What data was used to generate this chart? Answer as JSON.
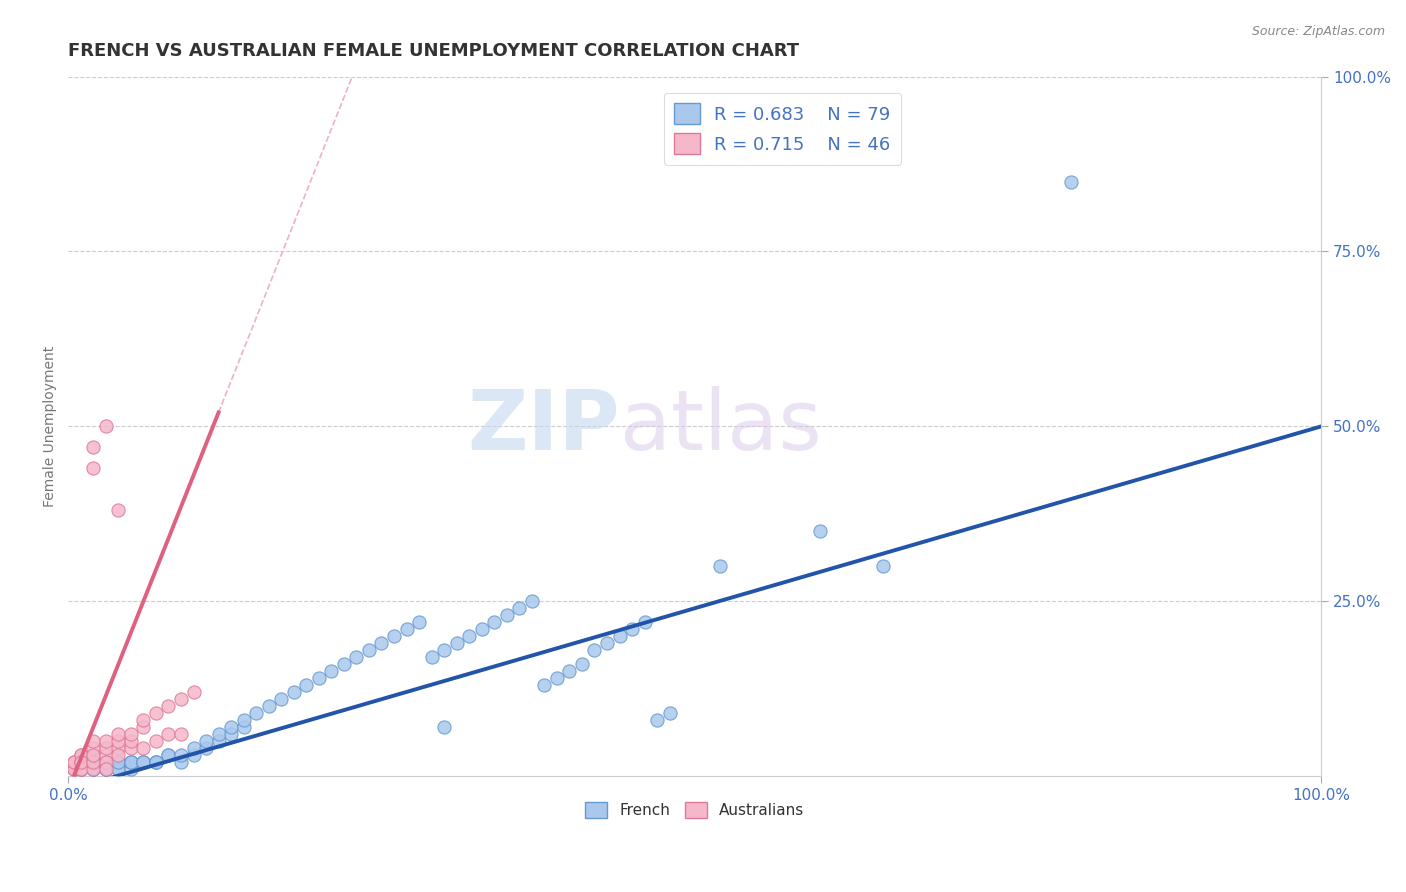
{
  "title": "FRENCH VS AUSTRALIAN FEMALE UNEMPLOYMENT CORRELATION CHART",
  "source_text": "Source: ZipAtlas.com",
  "ylabel": "Female Unemployment",
  "xlim": [
    0,
    1
  ],
  "ylim": [
    0,
    1
  ],
  "xtick_labels": [
    "0.0%",
    "100.0%"
  ],
  "xtick_positions": [
    0,
    1
  ],
  "ytick_labels": [
    "25.0%",
    "50.0%",
    "75.0%",
    "100.0%"
  ],
  "ytick_positions": [
    0.25,
    0.5,
    0.75,
    1.0
  ],
  "title_fontsize": 13,
  "title_color": "#333333",
  "axis_label_color": "#777777",
  "background_color": "#ffffff",
  "grid_color": "#cccccc",
  "watermark_zip": "ZIP",
  "watermark_atlas": "atlas",
  "legend_R1": "0.683",
  "legend_N1": "79",
  "legend_R2": "0.715",
  "legend_N2": "46",
  "french_color": "#aac8ee",
  "french_edge_color": "#6699cc",
  "australian_color": "#f5b8cb",
  "australian_edge_color": "#e07898",
  "french_line_color": "#2255aa",
  "australian_line_color": "#e06080",
  "ref_line_color": "#f0b0c0",
  "ref_line_style": "--",
  "french_line_slope": 0.52,
  "french_line_intercept": -0.02,
  "australian_line_slope": 4.5,
  "australian_line_intercept": -0.02,
  "french_points_x": [
    0.01,
    0.01,
    0.02,
    0.02,
    0.02,
    0.02,
    0.02,
    0.03,
    0.03,
    0.03,
    0.03,
    0.03,
    0.04,
    0.04,
    0.04,
    0.04,
    0.05,
    0.05,
    0.05,
    0.05,
    0.06,
    0.06,
    0.06,
    0.07,
    0.07,
    0.07,
    0.08,
    0.08,
    0.09,
    0.09,
    0.1,
    0.1,
    0.11,
    0.11,
    0.12,
    0.12,
    0.13,
    0.13,
    0.14,
    0.14,
    0.15,
    0.16,
    0.17,
    0.18,
    0.19,
    0.2,
    0.21,
    0.22,
    0.23,
    0.24,
    0.25,
    0.26,
    0.27,
    0.28,
    0.29,
    0.3,
    0.31,
    0.32,
    0.33,
    0.34,
    0.35,
    0.36,
    0.37,
    0.38,
    0.39,
    0.4,
    0.41,
    0.42,
    0.43,
    0.44,
    0.45,
    0.46,
    0.47,
    0.48,
    0.52,
    0.6,
    0.65,
    0.8,
    0.3
  ],
  "french_points_y": [
    0.01,
    0.01,
    0.01,
    0.02,
    0.01,
    0.01,
    0.02,
    0.01,
    0.01,
    0.02,
    0.02,
    0.01,
    0.01,
    0.02,
    0.01,
    0.02,
    0.02,
    0.01,
    0.02,
    0.02,
    0.02,
    0.02,
    0.02,
    0.02,
    0.02,
    0.02,
    0.03,
    0.03,
    0.02,
    0.03,
    0.03,
    0.04,
    0.04,
    0.05,
    0.05,
    0.06,
    0.06,
    0.07,
    0.07,
    0.08,
    0.09,
    0.1,
    0.11,
    0.12,
    0.13,
    0.14,
    0.15,
    0.16,
    0.17,
    0.18,
    0.19,
    0.2,
    0.21,
    0.22,
    0.17,
    0.18,
    0.19,
    0.2,
    0.21,
    0.22,
    0.23,
    0.24,
    0.25,
    0.13,
    0.14,
    0.15,
    0.16,
    0.18,
    0.19,
    0.2,
    0.21,
    0.22,
    0.08,
    0.09,
    0.3,
    0.35,
    0.3,
    0.85,
    0.07
  ],
  "australian_points_x": [
    0.005,
    0.005,
    0.005,
    0.005,
    0.005,
    0.01,
    0.01,
    0.01,
    0.01,
    0.01,
    0.01,
    0.01,
    0.01,
    0.02,
    0.02,
    0.02,
    0.02,
    0.02,
    0.02,
    0.02,
    0.03,
    0.03,
    0.03,
    0.03,
    0.03,
    0.04,
    0.04,
    0.04,
    0.04,
    0.05,
    0.05,
    0.05,
    0.06,
    0.06,
    0.06,
    0.07,
    0.07,
    0.08,
    0.08,
    0.09,
    0.09,
    0.1,
    0.04,
    0.02,
    0.03,
    0.02
  ],
  "australian_points_y": [
    0.01,
    0.01,
    0.01,
    0.02,
    0.02,
    0.01,
    0.01,
    0.02,
    0.02,
    0.03,
    0.03,
    0.01,
    0.02,
    0.02,
    0.03,
    0.04,
    0.05,
    0.01,
    0.02,
    0.03,
    0.03,
    0.04,
    0.05,
    0.02,
    0.01,
    0.04,
    0.05,
    0.06,
    0.03,
    0.04,
    0.05,
    0.06,
    0.07,
    0.08,
    0.04,
    0.09,
    0.05,
    0.1,
    0.06,
    0.11,
    0.06,
    0.12,
    0.38,
    0.44,
    0.5,
    0.47
  ]
}
